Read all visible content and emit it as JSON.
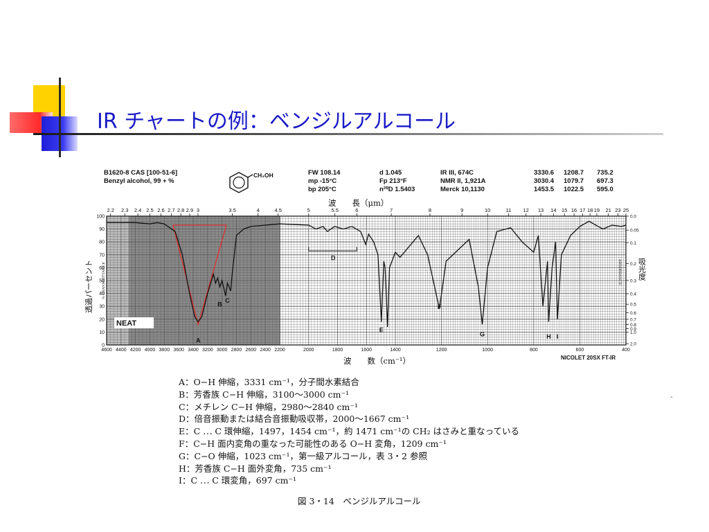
{
  "slide": {
    "title": "IR チャートの例：ベンジルアルコール"
  },
  "header": {
    "col1": [
      "B1620-8  CAS [100-51-6]",
      "Benzyl alcohol, 99 + %"
    ],
    "formula": "CH₂OH",
    "col2": [
      "FW 108.14",
      "mp -15°C",
      "bp 205°C"
    ],
    "col3": [
      "d 1.045",
      "Fp 213°F",
      "n²⁰D 1.5403"
    ],
    "col4": [
      "IR III, 674C",
      "NMR II, 1,921A",
      "Merck 10,1130"
    ],
    "col5": [
      "3330.6",
      "3030.4",
      "1453.5"
    ],
    "col6": [
      "1208.7",
      "1079.7",
      "1022.5"
    ],
    "col7": [
      "735.2",
      "697.3",
      "595.0"
    ]
  },
  "chart_data": {
    "type": "line",
    "top_axis_title": "波　　長（μm）",
    "bottom_axis_title": "波　　数（cm⁻¹）",
    "left_axis_title": "透過パーセント",
    "left_axis_inner_title": "% TRANSMITTANCE",
    "right_axis_title": "吸光度",
    "right_axis_inner_title": "ABSORBANCE",
    "top_ticks": [
      "2.2",
      "2.3",
      "2.4",
      "2.5",
      "2.6",
      "2.7",
      "2.8",
      "2.9",
      "3",
      "3.5",
      "4",
      "4.5",
      "5",
      "5.5",
      "6",
      "7",
      "8",
      "9",
      "10",
      "11",
      "12",
      "13",
      "14",
      "15",
      "16",
      "17",
      "18",
      "19",
      "21",
      "23",
      "25"
    ],
    "bottom_ticks": [
      "4600",
      "4400",
      "4200",
      "4000",
      "3800",
      "3600",
      "3400",
      "3200",
      "3000",
      "2800",
      "2600",
      "2400",
      "2200",
      "2000",
      "1800",
      "1600",
      "1400",
      "1200",
      "1000",
      "800",
      "600",
      "400"
    ],
    "left_ticks": [
      "100",
      "90",
      "80",
      "70",
      "60",
      "50",
      "40",
      "30",
      "20",
      "10",
      "0"
    ],
    "right_ticks": [
      "0.0",
      "0.05",
      "0.1",
      "0.2",
      "0.3",
      "0.4",
      "0.5",
      "0.6",
      "0.7",
      "0.8",
      "0.9",
      "1.0",
      "2.0"
    ],
    "sample_label": "NEAT",
    "instrument": "NICOLET 20SX FT-IR",
    "peak_labels": [
      "A",
      "B",
      "C",
      "D",
      "E",
      "F",
      "G",
      "H",
      "I"
    ],
    "series": [
      {
        "x": [
          4600,
          4400,
          4200,
          4000,
          3900,
          3800,
          3650,
          3550,
          3450,
          3380,
          3331,
          3280,
          3200,
          3120,
          3090,
          3060,
          3030,
          3000,
          2950,
          2925,
          2880,
          2860,
          2800,
          2700,
          2600,
          2400,
          2200,
          2000,
          1950,
          1900,
          1870,
          1820,
          1760,
          1700,
          1640,
          1605,
          1585,
          1550,
          1520,
          1497,
          1480,
          1471,
          1454,
          1440,
          1400,
          1380,
          1300,
          1260,
          1209,
          1180,
          1080,
          1040,
          1023,
          1000,
          960,
          900,
          850,
          800,
          780,
          760,
          740,
          735,
          720,
          705,
          697,
          680,
          640,
          600,
          560,
          520,
          500,
          460,
          420,
          400
        ],
        "y": [
          95,
          95,
          95,
          94,
          95,
          94,
          88,
          70,
          40,
          22,
          18,
          22,
          40,
          55,
          48,
          52,
          45,
          50,
          38,
          48,
          42,
          55,
          85,
          90,
          92,
          93,
          94,
          93,
          90,
          92,
          88,
          92,
          90,
          92,
          88,
          78,
          86,
          80,
          70,
          18,
          65,
          60,
          14,
          60,
          72,
          68,
          85,
          70,
          28,
          65,
          82,
          45,
          16,
          60,
          88,
          91,
          80,
          72,
          85,
          30,
          65,
          18,
          60,
          80,
          20,
          70,
          85,
          92,
          96,
          92,
          90,
          93,
          92,
          93
        ]
      }
    ]
  },
  "assignments": [
    {
      "letter": "A",
      "text": "O−H 伸縮，3331 cm⁻¹，分子間水素結合"
    },
    {
      "letter": "B",
      "text": "芳香族 C−H 伸縮，3100〜3000 cm⁻¹"
    },
    {
      "letter": "C",
      "text": "メチレン C−H 伸縮，2980〜2840 cm⁻¹"
    },
    {
      "letter": "D",
      "text": "倍音振動または結合音振動吸収帯，2000〜1667 cm⁻¹"
    },
    {
      "letter": "E",
      "text": "C ⋯ C 環伸縮，1497，1454 cm⁻¹，約 1471 cm⁻¹の CH₂ はさみと重なっている"
    },
    {
      "letter": "F",
      "text": "C−H 面内変角の重なった可能性のある O−H 変角，1209 cm⁻¹"
    },
    {
      "letter": "G",
      "text": "C−O 伸縮，1023 cm⁻¹，第一級アルコール，表 3・2 参照"
    },
    {
      "letter": "H",
      "text": "芳香族 C−H 面外変角，735 cm⁻¹"
    },
    {
      "letter": "I",
      "text": "C ⋯ C 環変角，697 cm⁻¹"
    }
  ],
  "caption": "図 3・14　ベンジルアルコール",
  "colors": {
    "title": "#1a1ac8",
    "accent_yellow": "#ffd200",
    "accent_red": "#ff3030",
    "accent_blue": "#2a2ae0",
    "trace": "#111111",
    "band_marker": "#e03030"
  }
}
